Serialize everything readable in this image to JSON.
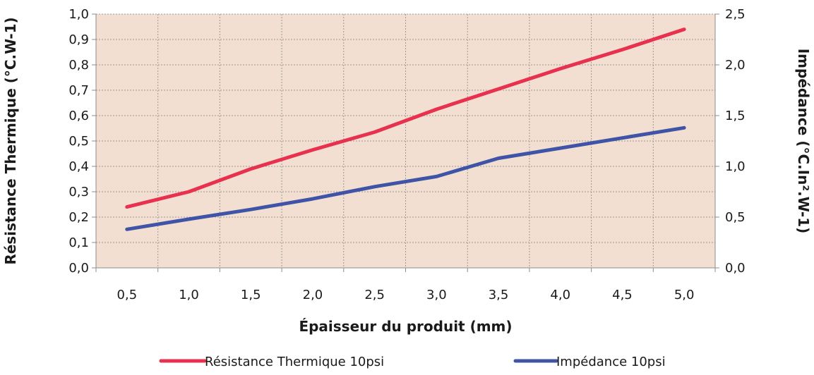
{
  "chart_data": {
    "type": "line",
    "x": [
      "0,5",
      "1,0",
      "1,5",
      "2,0",
      "2,5",
      "3,0",
      "3,5",
      "4,0",
      "4,5",
      "5,0"
    ],
    "xlabel": "Épaisseur du produit (mm)",
    "ylabel_left": "Résistance Thermique (°C.W-1)",
    "ylabel_right": "Impédance (°C.In².W-1)",
    "ylim_left": [
      0,
      1.0
    ],
    "ylim_right": [
      0,
      2.5
    ],
    "yticks_left": [
      "0,0",
      "0,1",
      "0,2",
      "0,3",
      "0,4",
      "0,5",
      "0,6",
      "0,7",
      "0,8",
      "0,9",
      "1,0"
    ],
    "yticks_right": [
      "0,0",
      "0,5",
      "1,0",
      "1,5",
      "2,0",
      "2,5"
    ],
    "grid": true,
    "legend_position": "bottom",
    "series": [
      {
        "name": "Résistance Thermique 10psi",
        "axis": "left",
        "color": "#e8304f",
        "values": [
          0.24,
          0.3,
          0.39,
          0.465,
          0.535,
          0.625,
          0.705,
          0.785,
          0.86,
          0.94
        ]
      },
      {
        "name": "Impédance 10psi",
        "axis": "right",
        "color": "#3f54a6",
        "values": [
          0.38,
          0.48,
          0.575,
          0.68,
          0.8,
          0.9,
          1.08,
          1.18,
          1.28,
          1.38
        ]
      }
    ],
    "colors": {
      "plot_background": "#f2dfd1",
      "grid": "#9a9a9a"
    }
  }
}
